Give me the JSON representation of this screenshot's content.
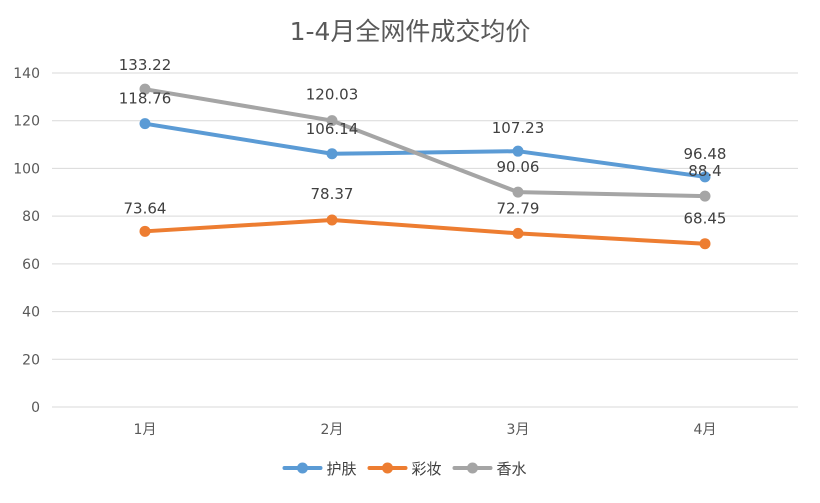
{
  "chart_data": {
    "type": "line",
    "title": "1-4月全网件成交均价",
    "xlabel": "",
    "ylabel": "",
    "categories": [
      "1月",
      "2月",
      "3月",
      "4月"
    ],
    "ylim": [
      0,
      140
    ],
    "yticks": [
      0,
      20,
      40,
      60,
      80,
      100,
      120,
      140
    ],
    "grid": true,
    "legend_position": "bottom",
    "series": [
      {
        "name": "护肤",
        "color": "#5b9bd5",
        "values": [
          118.76,
          106.14,
          107.23,
          96.48
        ],
        "labels": [
          "118.76",
          "106.14",
          "107.23",
          "96.48"
        ]
      },
      {
        "name": "彩妆",
        "color": "#ed7d31",
        "values": [
          73.64,
          78.37,
          72.79,
          68.45
        ],
        "labels": [
          "73.64",
          "78.37",
          "72.79",
          "68.45"
        ]
      },
      {
        "name": "香水",
        "color": "#a5a5a5",
        "values": [
          133.22,
          120.03,
          90.06,
          88.4
        ],
        "labels": [
          "133.22",
          "120.03",
          "90.06",
          "88.4"
        ]
      }
    ]
  }
}
